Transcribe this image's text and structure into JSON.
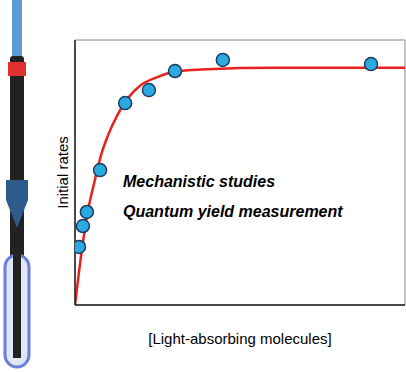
{
  "chart_data": {
    "type": "scatter",
    "x_label": "[Light-absorbing molecules]",
    "y_label": "Initial rates",
    "annotations": [
      "Mechanistic studies",
      "Quantum yield measurement"
    ],
    "xlim": [
      0,
      100
    ],
    "ylim": [
      0,
      100
    ],
    "tick_labels": false,
    "grid": false,
    "series": [
      {
        "type": "scatter",
        "color": "#29abe2",
        "marker": "circle",
        "x": [
          1.2,
          2.4,
          3.6,
          7.6,
          15.2,
          22.4,
          30.3,
          44.8,
          89.7
        ],
        "values": [
          21.9,
          29.8,
          35.1,
          50.9,
          76.2,
          81.1,
          88.3,
          92.5,
          90.9
        ]
      },
      {
        "type": "line",
        "color": "#e8211d",
        "line_style": "solid",
        "x": [
          0,
          2,
          4,
          6,
          8,
          10,
          13,
          16,
          20,
          25,
          30,
          40,
          60,
          90,
          100
        ],
        "values": [
          0,
          20,
          36,
          47,
          57,
          64,
          72,
          78,
          83,
          86,
          88,
          89,
          89.5,
          89.5,
          89.5
        ]
      }
    ]
  }
}
